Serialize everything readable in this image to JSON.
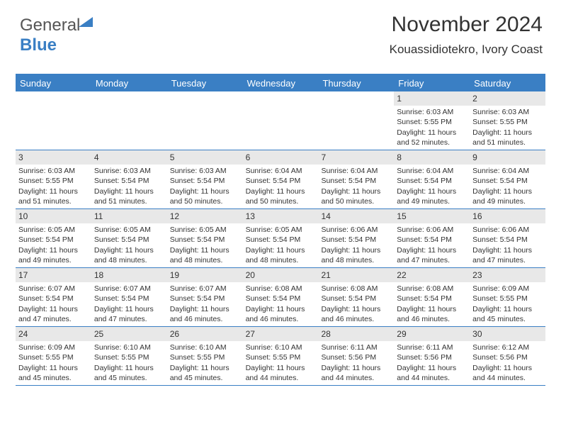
{
  "logo": {
    "text1": "General",
    "text2": "Blue"
  },
  "title": "November 2024",
  "location": "Kouassidiotekro, Ivory Coast",
  "colors": {
    "brand": "#3a7fc4",
    "header_bg": "#3a7fc4",
    "header_text": "#ffffff",
    "daynum_bg": "#e8e8e8",
    "text": "#333333",
    "background": "#ffffff"
  },
  "font": {
    "title_size": 30,
    "location_size": 17,
    "header_size": 13,
    "body_size": 10.5
  },
  "day_headers": [
    "Sunday",
    "Monday",
    "Tuesday",
    "Wednesday",
    "Thursday",
    "Friday",
    "Saturday"
  ],
  "weeks": [
    [
      {
        "n": "",
        "lines": []
      },
      {
        "n": "",
        "lines": []
      },
      {
        "n": "",
        "lines": []
      },
      {
        "n": "",
        "lines": []
      },
      {
        "n": "",
        "lines": []
      },
      {
        "n": "1",
        "lines": [
          "Sunrise: 6:03 AM",
          "Sunset: 5:55 PM",
          "Daylight: 11 hours and 52 minutes."
        ]
      },
      {
        "n": "2",
        "lines": [
          "Sunrise: 6:03 AM",
          "Sunset: 5:55 PM",
          "Daylight: 11 hours and 51 minutes."
        ]
      }
    ],
    [
      {
        "n": "3",
        "lines": [
          "Sunrise: 6:03 AM",
          "Sunset: 5:55 PM",
          "Daylight: 11 hours and 51 minutes."
        ]
      },
      {
        "n": "4",
        "lines": [
          "Sunrise: 6:03 AM",
          "Sunset: 5:54 PM",
          "Daylight: 11 hours and 51 minutes."
        ]
      },
      {
        "n": "5",
        "lines": [
          "Sunrise: 6:03 AM",
          "Sunset: 5:54 PM",
          "Daylight: 11 hours and 50 minutes."
        ]
      },
      {
        "n": "6",
        "lines": [
          "Sunrise: 6:04 AM",
          "Sunset: 5:54 PM",
          "Daylight: 11 hours and 50 minutes."
        ]
      },
      {
        "n": "7",
        "lines": [
          "Sunrise: 6:04 AM",
          "Sunset: 5:54 PM",
          "Daylight: 11 hours and 50 minutes."
        ]
      },
      {
        "n": "8",
        "lines": [
          "Sunrise: 6:04 AM",
          "Sunset: 5:54 PM",
          "Daylight: 11 hours and 49 minutes."
        ]
      },
      {
        "n": "9",
        "lines": [
          "Sunrise: 6:04 AM",
          "Sunset: 5:54 PM",
          "Daylight: 11 hours and 49 minutes."
        ]
      }
    ],
    [
      {
        "n": "10",
        "lines": [
          "Sunrise: 6:05 AM",
          "Sunset: 5:54 PM",
          "Daylight: 11 hours and 49 minutes."
        ]
      },
      {
        "n": "11",
        "lines": [
          "Sunrise: 6:05 AM",
          "Sunset: 5:54 PM",
          "Daylight: 11 hours and 48 minutes."
        ]
      },
      {
        "n": "12",
        "lines": [
          "Sunrise: 6:05 AM",
          "Sunset: 5:54 PM",
          "Daylight: 11 hours and 48 minutes."
        ]
      },
      {
        "n": "13",
        "lines": [
          "Sunrise: 6:05 AM",
          "Sunset: 5:54 PM",
          "Daylight: 11 hours and 48 minutes."
        ]
      },
      {
        "n": "14",
        "lines": [
          "Sunrise: 6:06 AM",
          "Sunset: 5:54 PM",
          "Daylight: 11 hours and 48 minutes."
        ]
      },
      {
        "n": "15",
        "lines": [
          "Sunrise: 6:06 AM",
          "Sunset: 5:54 PM",
          "Daylight: 11 hours and 47 minutes."
        ]
      },
      {
        "n": "16",
        "lines": [
          "Sunrise: 6:06 AM",
          "Sunset: 5:54 PM",
          "Daylight: 11 hours and 47 minutes."
        ]
      }
    ],
    [
      {
        "n": "17",
        "lines": [
          "Sunrise: 6:07 AM",
          "Sunset: 5:54 PM",
          "Daylight: 11 hours and 47 minutes."
        ]
      },
      {
        "n": "18",
        "lines": [
          "Sunrise: 6:07 AM",
          "Sunset: 5:54 PM",
          "Daylight: 11 hours and 47 minutes."
        ]
      },
      {
        "n": "19",
        "lines": [
          "Sunrise: 6:07 AM",
          "Sunset: 5:54 PM",
          "Daylight: 11 hours and 46 minutes."
        ]
      },
      {
        "n": "20",
        "lines": [
          "Sunrise: 6:08 AM",
          "Sunset: 5:54 PM",
          "Daylight: 11 hours and 46 minutes."
        ]
      },
      {
        "n": "21",
        "lines": [
          "Sunrise: 6:08 AM",
          "Sunset: 5:54 PM",
          "Daylight: 11 hours and 46 minutes."
        ]
      },
      {
        "n": "22",
        "lines": [
          "Sunrise: 6:08 AM",
          "Sunset: 5:54 PM",
          "Daylight: 11 hours and 46 minutes."
        ]
      },
      {
        "n": "23",
        "lines": [
          "Sunrise: 6:09 AM",
          "Sunset: 5:55 PM",
          "Daylight: 11 hours and 45 minutes."
        ]
      }
    ],
    [
      {
        "n": "24",
        "lines": [
          "Sunrise: 6:09 AM",
          "Sunset: 5:55 PM",
          "Daylight: 11 hours and 45 minutes."
        ]
      },
      {
        "n": "25",
        "lines": [
          "Sunrise: 6:10 AM",
          "Sunset: 5:55 PM",
          "Daylight: 11 hours and 45 minutes."
        ]
      },
      {
        "n": "26",
        "lines": [
          "Sunrise: 6:10 AM",
          "Sunset: 5:55 PM",
          "Daylight: 11 hours and 45 minutes."
        ]
      },
      {
        "n": "27",
        "lines": [
          "Sunrise: 6:10 AM",
          "Sunset: 5:55 PM",
          "Daylight: 11 hours and 44 minutes."
        ]
      },
      {
        "n": "28",
        "lines": [
          "Sunrise: 6:11 AM",
          "Sunset: 5:56 PM",
          "Daylight: 11 hours and 44 minutes."
        ]
      },
      {
        "n": "29",
        "lines": [
          "Sunrise: 6:11 AM",
          "Sunset: 5:56 PM",
          "Daylight: 11 hours and 44 minutes."
        ]
      },
      {
        "n": "30",
        "lines": [
          "Sunrise: 6:12 AM",
          "Sunset: 5:56 PM",
          "Daylight: 11 hours and 44 minutes."
        ]
      }
    ]
  ]
}
